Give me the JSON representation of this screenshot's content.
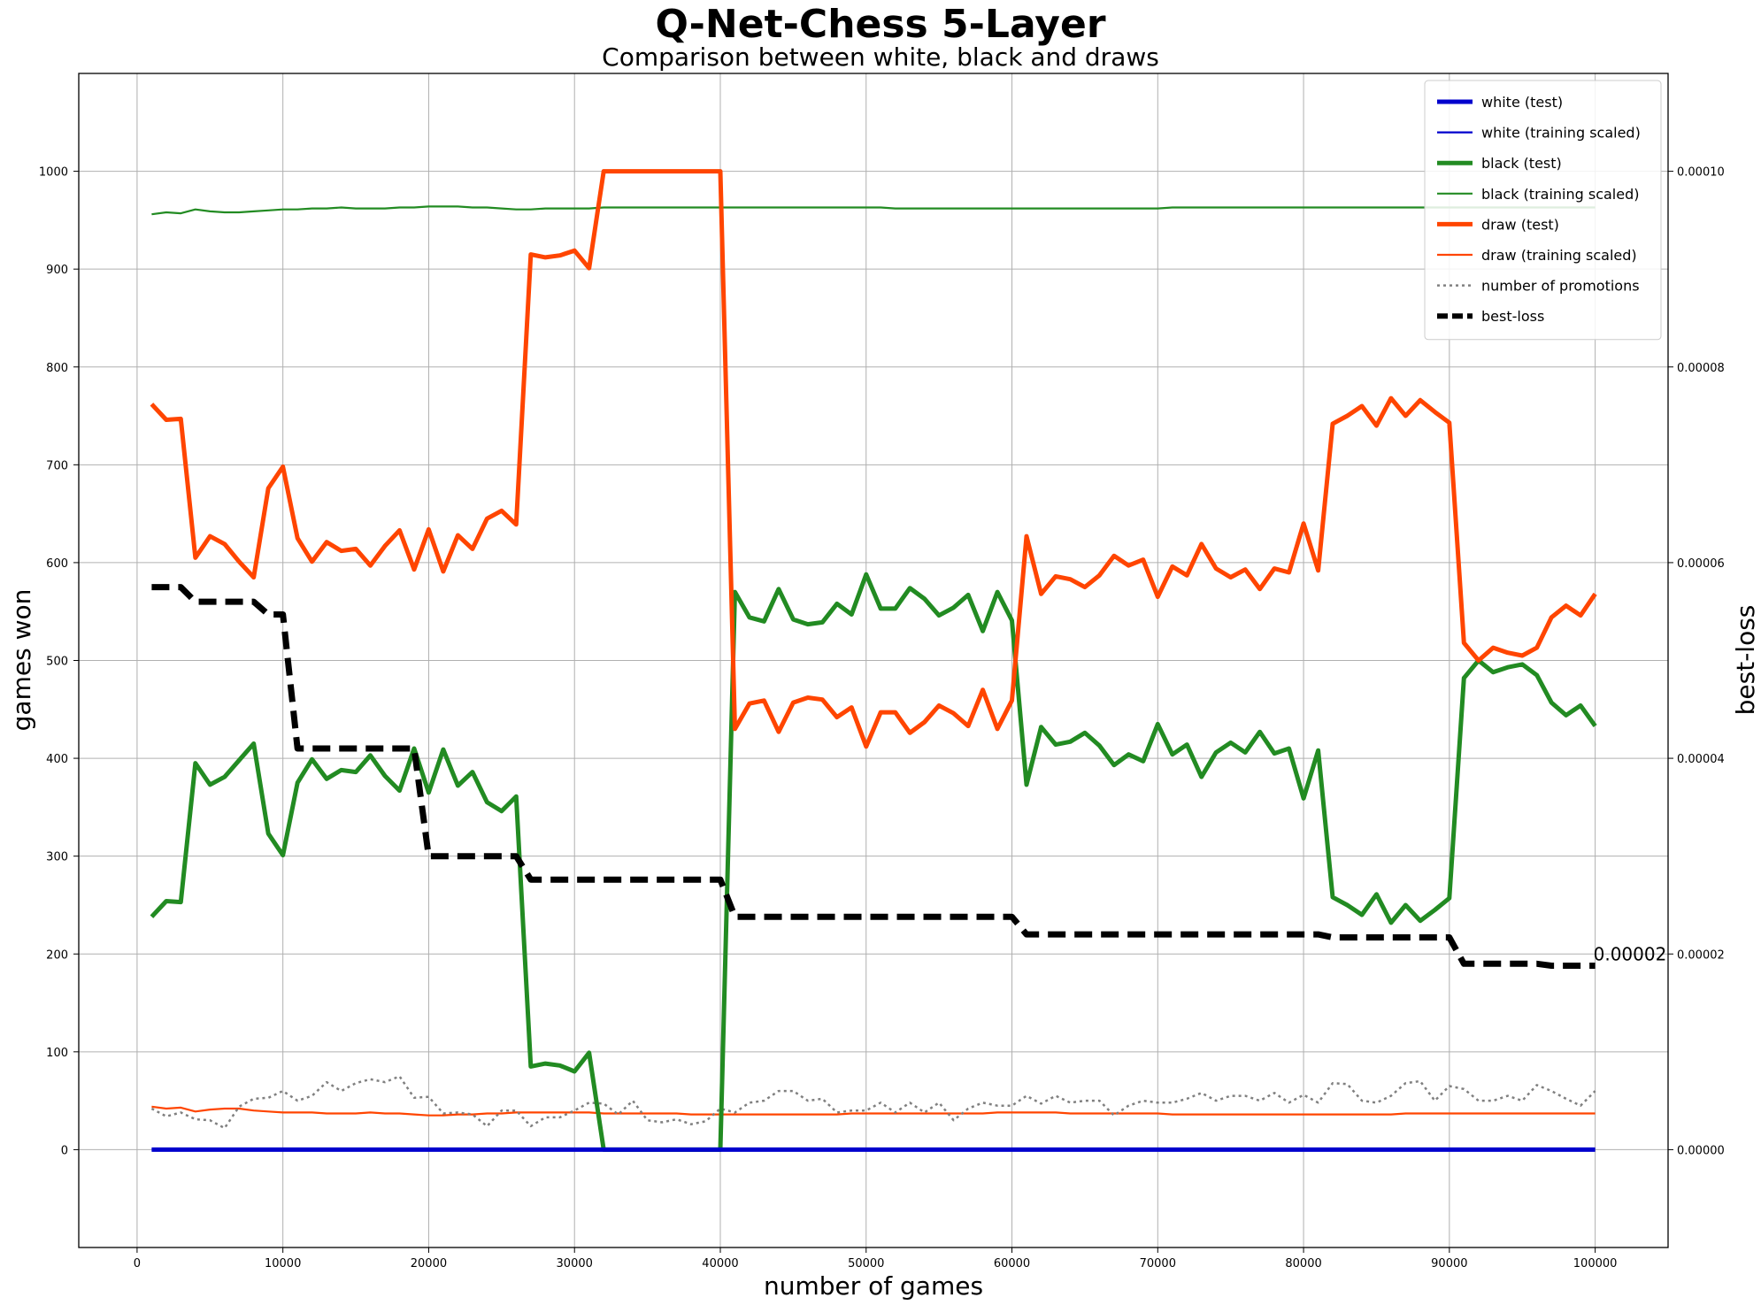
{
  "chart_data": {
    "type": "line",
    "title": "Q-Net-Chess 5-Layer",
    "subtitle": "Comparison between white, black and draws",
    "xlabel": "number of games",
    "ylabel": "games won",
    "y2label": "best-loss",
    "xlim": [
      -4000,
      105000
    ],
    "ylim": [
      -100,
      1100
    ],
    "y2lim": [
      -1e-05,
      0.00011
    ],
    "x_ticks": [
      0,
      10000,
      20000,
      30000,
      40000,
      50000,
      60000,
      70000,
      80000,
      90000,
      100000
    ],
    "y_ticks": [
      0,
      100,
      200,
      300,
      400,
      500,
      600,
      700,
      800,
      900,
      1000
    ],
    "y2_ticks": [
      "0.00000",
      "0.00002",
      "0.00004",
      "0.00006",
      "0.00008",
      "0.00010"
    ],
    "y2_tick_values": [
      0,
      2e-05,
      4e-05,
      6e-05,
      8e-05,
      0.0001
    ],
    "grid": true,
    "legend_position": "top-right",
    "annotation": {
      "text": "0.00002",
      "x": 100000,
      "y2": 1.88e-05
    },
    "series": [
      {
        "name": "white (test)",
        "color": "#0000cd",
        "style": "thick",
        "axis": "left",
        "x": [
          1000,
          100000
        ],
        "y": [
          0,
          0
        ]
      },
      {
        "name": "white (training scaled)",
        "color": "#0000cd",
        "style": "thin",
        "axis": "left",
        "x": [
          1000,
          100000
        ],
        "y": [
          0,
          0
        ]
      },
      {
        "name": "black (test)",
        "color": "#228b22",
        "style": "thick",
        "axis": "left",
        "x": [
          1000,
          2000,
          3000,
          4000,
          5000,
          6000,
          7000,
          8000,
          9000,
          10000,
          11000,
          12000,
          13000,
          14000,
          15000,
          16000,
          17000,
          18000,
          19000,
          20000,
          21000,
          22000,
          23000,
          24000,
          25000,
          26000,
          27000,
          28000,
          29000,
          30000,
          31000,
          32000,
          33000,
          34000,
          35000,
          36000,
          37000,
          38000,
          39000,
          40000,
          41000,
          42000,
          43000,
          44000,
          45000,
          46000,
          47000,
          48000,
          49000,
          50000,
          51000,
          52000,
          53000,
          54000,
          55000,
          56000,
          57000,
          58000,
          59000,
          60000,
          61000,
          62000,
          63000,
          64000,
          65000,
          66000,
          67000,
          68000,
          69000,
          70000,
          71000,
          72000,
          73000,
          74000,
          75000,
          76000,
          77000,
          78000,
          79000,
          80000,
          81000,
          82000,
          83000,
          84000,
          85000,
          86000,
          87000,
          88000,
          89000,
          90000,
          91000,
          92000,
          93000,
          94000,
          95000,
          96000,
          97000,
          98000,
          99000,
          100000
        ],
        "y": [
          238,
          254,
          253,
          395,
          373,
          381,
          398,
          415,
          323,
          301,
          375,
          399,
          379,
          388,
          386,
          403,
          382,
          367,
          410,
          365,
          409,
          372,
          386,
          355,
          346,
          361,
          85,
          88,
          86,
          80,
          99,
          0,
          0,
          0,
          0,
          0,
          0,
          0,
          0,
          0,
          570,
          544,
          540,
          573,
          542,
          537,
          539,
          558,
          547,
          588,
          553,
          553,
          574,
          563,
          546,
          554,
          567,
          530,
          570,
          541,
          373,
          432,
          414,
          417,
          426,
          413,
          393,
          404,
          397,
          435,
          404,
          414,
          381,
          406,
          416,
          406,
          427,
          405,
          410,
          359,
          408,
          258,
          250,
          240,
          261,
          232,
          250,
          234,
          245,
          257,
          482,
          500,
          488,
          493,
          496,
          485,
          457,
          444,
          454,
          433
        ]
      },
      {
        "name": "black (training scaled)",
        "color": "#228b22",
        "style": "thin",
        "axis": "left",
        "x": [
          1000,
          2000,
          3000,
          4000,
          5000,
          6000,
          7000,
          8000,
          9000,
          10000,
          11000,
          12000,
          13000,
          14000,
          15000,
          16000,
          17000,
          18000,
          19000,
          20000,
          21000,
          22000,
          23000,
          24000,
          25000,
          26000,
          27000,
          28000,
          29000,
          30000,
          31000,
          32000,
          33000,
          34000,
          35000,
          36000,
          37000,
          38000,
          39000,
          40000,
          41000,
          42000,
          43000,
          44000,
          45000,
          46000,
          47000,
          48000,
          49000,
          50000,
          51000,
          52000,
          53000,
          54000,
          55000,
          56000,
          57000,
          58000,
          59000,
          60000,
          61000,
          62000,
          63000,
          64000,
          65000,
          66000,
          67000,
          68000,
          69000,
          70000,
          71000,
          72000,
          73000,
          74000,
          75000,
          76000,
          77000,
          78000,
          79000,
          80000,
          81000,
          82000,
          83000,
          84000,
          85000,
          86000,
          87000,
          88000,
          89000,
          90000,
          91000,
          92000,
          93000,
          94000,
          95000,
          96000,
          97000,
          98000,
          99000,
          100000
        ],
        "y": [
          956,
          958,
          957,
          961,
          959,
          958,
          958,
          959,
          960,
          961,
          961,
          962,
          962,
          963,
          962,
          962,
          962,
          963,
          963,
          964,
          964,
          964,
          963,
          963,
          962,
          961,
          961,
          962,
          962,
          962,
          962,
          963,
          963,
          963,
          963,
          963,
          963,
          963,
          963,
          963,
          963,
          963,
          963,
          963,
          963,
          963,
          963,
          963,
          963,
          963,
          963,
          962,
          962,
          962,
          962,
          962,
          962,
          962,
          962,
          962,
          962,
          962,
          962,
          962,
          962,
          962,
          962,
          962,
          962,
          962,
          963,
          963,
          963,
          963,
          963,
          963,
          963,
          963,
          963,
          963,
          963,
          963,
          963,
          963,
          963,
          963,
          963,
          963,
          963,
          963,
          963,
          963,
          963,
          963,
          963,
          963,
          963,
          963,
          963,
          963
        ]
      },
      {
        "name": "draw (test)",
        "color": "#ff4500",
        "style": "thick",
        "axis": "left",
        "x": [
          1000,
          2000,
          3000,
          4000,
          5000,
          6000,
          7000,
          8000,
          9000,
          10000,
          11000,
          12000,
          13000,
          14000,
          15000,
          16000,
          17000,
          18000,
          19000,
          20000,
          21000,
          22000,
          23000,
          24000,
          25000,
          26000,
          27000,
          28000,
          29000,
          30000,
          31000,
          32000,
          33000,
          34000,
          35000,
          36000,
          37000,
          38000,
          39000,
          40000,
          41000,
          42000,
          43000,
          44000,
          45000,
          46000,
          47000,
          48000,
          49000,
          50000,
          51000,
          52000,
          53000,
          54000,
          55000,
          56000,
          57000,
          58000,
          59000,
          60000,
          61000,
          62000,
          63000,
          64000,
          65000,
          66000,
          67000,
          68000,
          69000,
          70000,
          71000,
          72000,
          73000,
          74000,
          75000,
          76000,
          77000,
          78000,
          79000,
          80000,
          81000,
          82000,
          83000,
          84000,
          85000,
          86000,
          87000,
          88000,
          89000,
          90000,
          91000,
          92000,
          93000,
          94000,
          95000,
          96000,
          97000,
          98000,
          99000,
          100000
        ],
        "y": [
          762,
          746,
          747,
          605,
          627,
          619,
          601,
          585,
          676,
          698,
          625,
          601,
          621,
          612,
          614,
          597,
          617,
          633,
          593,
          634,
          591,
          628,
          614,
          645,
          653,
          639,
          915,
          912,
          914,
          919,
          901,
          1000,
          1000,
          1000,
          1000,
          1000,
          1000,
          1000,
          1000,
          1000,
          430,
          456,
          459,
          427,
          457,
          462,
          460,
          442,
          452,
          412,
          447,
          447,
          426,
          437,
          454,
          446,
          433,
          470,
          430,
          459,
          627,
          568,
          586,
          583,
          575,
          587,
          607,
          597,
          603,
          565,
          596,
          587,
          619,
          594,
          585,
          593,
          573,
          594,
          590,
          640,
          592,
          742,
          750,
          760,
          740,
          768,
          750,
          766,
          754,
          743,
          518,
          500,
          513,
          508,
          505,
          513,
          544,
          556,
          546,
          568
        ]
      },
      {
        "name": "draw (training scaled)",
        "color": "#ff4500",
        "style": "thin",
        "axis": "left",
        "x": [
          1000,
          2000,
          3000,
          4000,
          5000,
          6000,
          7000,
          8000,
          9000,
          10000,
          11000,
          12000,
          13000,
          14000,
          15000,
          16000,
          17000,
          18000,
          19000,
          20000,
          21000,
          22000,
          23000,
          24000,
          25000,
          26000,
          27000,
          28000,
          29000,
          30000,
          31000,
          32000,
          33000,
          34000,
          35000,
          36000,
          37000,
          38000,
          39000,
          40000,
          41000,
          42000,
          43000,
          44000,
          45000,
          46000,
          47000,
          48000,
          49000,
          50000,
          51000,
          52000,
          53000,
          54000,
          55000,
          56000,
          57000,
          58000,
          59000,
          60000,
          61000,
          62000,
          63000,
          64000,
          65000,
          66000,
          67000,
          68000,
          69000,
          70000,
          71000,
          72000,
          73000,
          74000,
          75000,
          76000,
          77000,
          78000,
          79000,
          80000,
          81000,
          82000,
          83000,
          84000,
          85000,
          86000,
          87000,
          88000,
          89000,
          90000,
          91000,
          92000,
          93000,
          94000,
          95000,
          96000,
          97000,
          98000,
          99000,
          100000
        ],
        "y": [
          44,
          42,
          43,
          39,
          41,
          42,
          42,
          40,
          39,
          38,
          38,
          38,
          37,
          37,
          37,
          38,
          37,
          37,
          36,
          35,
          35,
          36,
          36,
          37,
          37,
          38,
          38,
          38,
          38,
          38,
          38,
          37,
          37,
          37,
          37,
          37,
          37,
          36,
          36,
          36,
          36,
          36,
          36,
          36,
          36,
          36,
          36,
          36,
          37,
          37,
          37,
          37,
          37,
          37,
          37,
          37,
          37,
          37,
          38,
          38,
          38,
          38,
          38,
          37,
          37,
          37,
          37,
          37,
          37,
          37,
          36,
          36,
          36,
          36,
          36,
          36,
          36,
          36,
          36,
          36,
          36,
          36,
          36,
          36,
          36,
          36,
          37,
          37,
          37,
          37,
          37,
          37,
          37,
          37,
          37,
          37,
          37,
          37,
          37,
          37
        ]
      },
      {
        "name": "number of promotions",
        "color": "#808080",
        "style": "dotted",
        "axis": "left",
        "x": [
          1000,
          2000,
          3000,
          4000,
          5000,
          6000,
          7000,
          8000,
          9000,
          10000,
          11000,
          12000,
          13000,
          14000,
          15000,
          16000,
          17000,
          18000,
          19000,
          20000,
          21000,
          22000,
          23000,
          24000,
          25000,
          26000,
          27000,
          28000,
          29000,
          30000,
          31000,
          32000,
          33000,
          34000,
          35000,
          36000,
          37000,
          38000,
          39000,
          40000,
          41000,
          42000,
          43000,
          44000,
          45000,
          46000,
          47000,
          48000,
          49000,
          50000,
          51000,
          52000,
          53000,
          54000,
          55000,
          56000,
          57000,
          58000,
          59000,
          60000,
          61000,
          62000,
          63000,
          64000,
          65000,
          66000,
          67000,
          68000,
          69000,
          70000,
          71000,
          72000,
          73000,
          74000,
          75000,
          76000,
          77000,
          78000,
          79000,
          80000,
          81000,
          82000,
          83000,
          84000,
          85000,
          86000,
          87000,
          88000,
          89000,
          90000,
          91000,
          92000,
          93000,
          94000,
          95000,
          96000,
          97000,
          98000,
          99000,
          100000
        ],
        "y": [
          42,
          34,
          38,
          31,
          30,
          22,
          44,
          52,
          53,
          60,
          50,
          55,
          69,
          60,
          68,
          72,
          69,
          75,
          53,
          54,
          37,
          38,
          36,
          24,
          40,
          40,
          24,
          33,
          33,
          40,
          48,
          47,
          36,
          50,
          30,
          28,
          31,
          26,
          29,
          42,
          38,
          48,
          50,
          60,
          60,
          50,
          52,
          38,
          40,
          40,
          48,
          38,
          48,
          38,
          48,
          30,
          42,
          48,
          45,
          45,
          55,
          47,
          55,
          48,
          50,
          50,
          35,
          45,
          50,
          48,
          48,
          52,
          58,
          50,
          55,
          55,
          50,
          58,
          48,
          56,
          48,
          68,
          67,
          50,
          48,
          55,
          68,
          70,
          50,
          65,
          62,
          50,
          50,
          55,
          50,
          66,
          60,
          52,
          45,
          60
        ]
      },
      {
        "name": "best-loss",
        "color": "#000000",
        "style": "dashed",
        "axis": "right",
        "x": [
          1000,
          3000,
          4000,
          8000,
          9000,
          10000,
          11000,
          19000,
          20000,
          26000,
          27000,
          40000,
          41000,
          60000,
          61000,
          81000,
          82000,
          90000,
          91000,
          96000,
          97000,
          100000
        ],
        "y": [
          5.75e-05,
          5.75e-05,
          5.6e-05,
          5.6e-05,
          5.47e-05,
          5.47e-05,
          4.1e-05,
          4.1e-05,
          3e-05,
          3e-05,
          2.76e-05,
          2.76e-05,
          2.38e-05,
          2.38e-05,
          2.2e-05,
          2.2e-05,
          2.17e-05,
          2.17e-05,
          1.9e-05,
          1.9e-05,
          1.88e-05,
          1.88e-05
        ]
      }
    ]
  }
}
